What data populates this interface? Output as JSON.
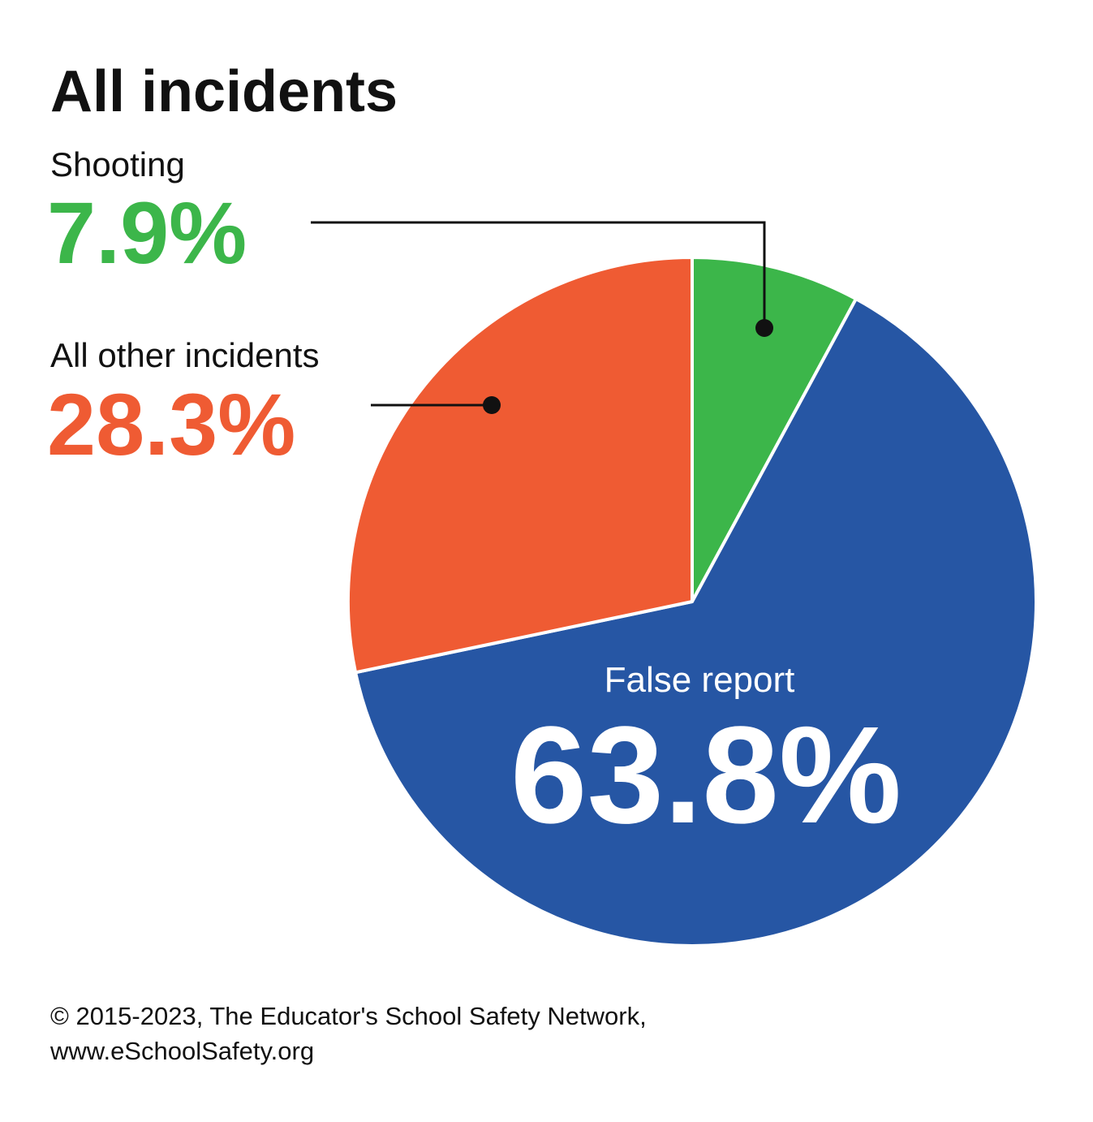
{
  "title": "All incidents",
  "colors": {
    "Shooting": "#3cb64a",
    "False report": "#2656a4",
    "All other incidents": "#ef5b33"
  },
  "chart_data": {
    "type": "pie",
    "title": "All incidents",
    "slices": [
      {
        "label": "Shooting",
        "value": 7.9,
        "value_label": "7.9%"
      },
      {
        "label": "False report",
        "value": 63.8,
        "value_label": "63.8%"
      },
      {
        "label": "All other incidents",
        "value": 28.3,
        "value_label": "28.3%"
      }
    ],
    "start": "12 o'clock",
    "direction": "clockwise"
  },
  "footer": {
    "line1": "© 2015-2023, The Educator's School Safety Network,",
    "line2": "www.eSchoolSafety.org"
  }
}
